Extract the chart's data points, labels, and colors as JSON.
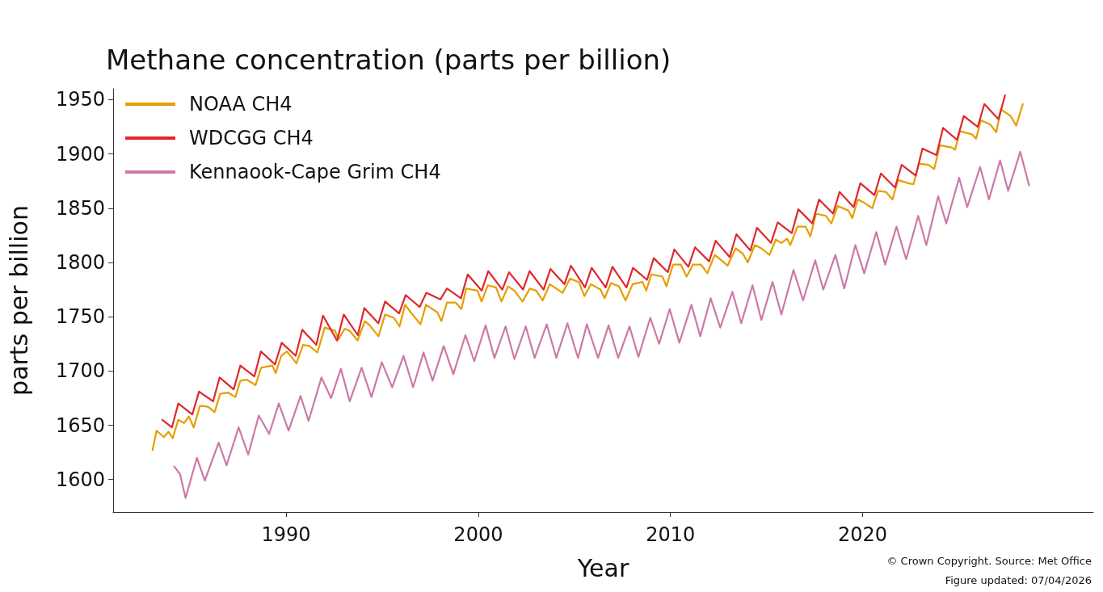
{
  "chart_data": {
    "type": "line",
    "title": "Methane concentration (parts per billion)",
    "xlabel": "Year",
    "ylabel": "parts per billion",
    "annotations": [
      "© Crown Copyright. Source: Met Office",
      "Figure updated: 07/04/2026"
    ],
    "xlim": [
      1981,
      2032
    ],
    "xticks": [
      1990,
      2000,
      2010,
      2020
    ],
    "ylim": [
      1570,
      1960
    ],
    "yticks": [
      1600,
      1650,
      1700,
      1750,
      1800,
      1850,
      1900,
      1950
    ],
    "grid": false,
    "legend": "top left",
    "marker": "none",
    "line_style": "solid",
    "series": [
      {
        "name": "NOAA CH4",
        "color": "#e69f00",
        "x": [
          1983.05,
          1983.26,
          1983.64,
          1983.89,
          1984.1,
          1984.39,
          1984.69,
          1984.94,
          1985.19,
          1985.52,
          1985.94,
          1986.28,
          1986.57,
          1986.99,
          1987.36,
          1987.62,
          1987.95,
          1988.41,
          1988.7,
          1989.29,
          1989.46,
          1989.75,
          1990.04,
          1990.54,
          1990.88,
          1991.21,
          1991.63,
          1992.01,
          1992.55,
          1992.72,
          1993.05,
          1993.31,
          1993.72,
          1994.1,
          1994.35,
          1994.81,
          1995.15,
          1995.61,
          1995.9,
          1996.19,
          1996.49,
          1996.99,
          1997.28,
          1997.87,
          1998.08,
          1998.37,
          1998.83,
          1999.12,
          1999.37,
          1999.96,
          2000.17,
          2000.5,
          2000.92,
          2001.21,
          2001.55,
          2001.88,
          2002.3,
          2002.68,
          2003.01,
          2003.35,
          2003.72,
          2004.14,
          2004.39,
          2004.77,
          2005.23,
          2005.52,
          2005.86,
          2006.36,
          2006.57,
          2006.9,
          2007.32,
          2007.66,
          2008.03,
          2008.54,
          2008.74,
          2009.0,
          2009.58,
          2009.79,
          2010.13,
          2010.54,
          2010.84,
          2011.17,
          2011.59,
          2011.92,
          2012.3,
          2012.72,
          2012.97,
          2013.39,
          2013.77,
          2014.02,
          2014.39,
          2014.73,
          2015.15,
          2015.48,
          2015.77,
          2016.07,
          2016.23,
          2016.61,
          2017.03,
          2017.28,
          2017.57,
          2018.08,
          2018.37,
          2018.7,
          2019.25,
          2019.46,
          2019.75,
          2020.08,
          2020.5,
          2020.8,
          2021.21,
          2021.55,
          2021.84,
          2022.38,
          2022.64,
          2022.93,
          2023.43,
          2023.72,
          2024.02,
          2024.64,
          2024.81,
          2025.06,
          2025.69,
          2025.9,
          2026.15,
          2026.65,
          2026.95,
          2027.2,
          2027.7,
          2027.99,
          2028.33
        ],
        "values": [
          1627,
          1645,
          1639,
          1644,
          1638,
          1655,
          1652,
          1658,
          1648,
          1668,
          1667,
          1662,
          1679,
          1680,
          1676,
          1691,
          1692,
          1687,
          1703,
          1705,
          1698,
          1714,
          1718,
          1707,
          1724,
          1723,
          1717,
          1740,
          1737,
          1729,
          1739,
          1737,
          1728,
          1746,
          1742,
          1732,
          1752,
          1749,
          1741,
          1761,
          1754,
          1743,
          1761,
          1754,
          1746,
          1763,
          1763,
          1757,
          1776,
          1774,
          1764,
          1779,
          1777,
          1764,
          1778,
          1774,
          1764,
          1776,
          1774,
          1765,
          1780,
          1775,
          1772,
          1785,
          1782,
          1769,
          1780,
          1775,
          1767,
          1781,
          1778,
          1765,
          1780,
          1782,
          1774,
          1789,
          1787,
          1778,
          1798,
          1798,
          1787,
          1798,
          1798,
          1790,
          1807,
          1801,
          1797,
          1813,
          1808,
          1800,
          1816,
          1813,
          1807,
          1821,
          1818,
          1822,
          1816,
          1833,
          1833,
          1824,
          1845,
          1843,
          1836,
          1852,
          1848,
          1841,
          1858,
          1855,
          1850,
          1866,
          1865,
          1858,
          1876,
          1873,
          1872,
          1891,
          1890,
          1886,
          1908,
          1906,
          1904,
          1921,
          1918,
          1914,
          1931,
          1927,
          1920,
          1941,
          1935,
          1926,
          1946
        ]
      },
      {
        "name": "WDCGG CH4",
        "color": "#e0282e",
        "x": [
          1983.56,
          1984.06,
          1984.39,
          1985.12,
          1985.47,
          1986.2,
          1986.54,
          1987.27,
          1987.62,
          1988.35,
          1988.69,
          1989.42,
          1989.77,
          1990.5,
          1990.84,
          1991.57,
          1991.92,
          1992.65,
          1993.0,
          1993.73,
          1994.07,
          1994.8,
          1995.15,
          1995.88,
          1996.22,
          1996.95,
          1997.3,
          1998.03,
          1998.37,
          1999.1,
          1999.45,
          2000.18,
          2000.52,
          2001.25,
          2001.6,
          2002.33,
          2002.67,
          2003.4,
          2003.75,
          2004.48,
          2004.82,
          2005.55,
          2005.9,
          2006.63,
          2006.98,
          2007.71,
          2008.05,
          2008.78,
          2009.13,
          2009.86,
          2010.2,
          2010.93,
          2011.28,
          2012.01,
          2012.35,
          2013.08,
          2013.43,
          2014.16,
          2014.5,
          2015.23,
          2015.58,
          2016.31,
          2016.65,
          2017.38,
          2017.73,
          2018.46,
          2018.8,
          2019.53,
          2019.88,
          2020.61,
          2020.95,
          2021.68,
          2022.03,
          2022.76,
          2023.11,
          2023.84,
          2024.18,
          2024.91,
          2025.26,
          2025.99,
          2026.33,
          2027.06,
          2027.41
        ],
        "values": [
          1655,
          1648,
          1670,
          1660,
          1681,
          1672,
          1694,
          1683,
          1705,
          1695,
          1718,
          1706,
          1726,
          1714,
          1738,
          1724,
          1751,
          1728,
          1752,
          1733,
          1758,
          1744,
          1764,
          1753,
          1770,
          1759,
          1772,
          1766,
          1776,
          1767,
          1789,
          1774,
          1792,
          1775,
          1791,
          1775,
          1792,
          1775,
          1794,
          1780,
          1797,
          1777,
          1795,
          1777,
          1796,
          1777,
          1795,
          1784,
          1804,
          1791,
          1812,
          1796,
          1814,
          1801,
          1820,
          1805,
          1826,
          1811,
          1832,
          1818,
          1837,
          1827,
          1849,
          1836,
          1858,
          1845,
          1865,
          1851,
          1873,
          1862,
          1882,
          1869,
          1890,
          1880,
          1905,
          1899,
          1924,
          1913,
          1935,
          1925,
          1946,
          1932,
          1954
        ]
      },
      {
        "name": "Kennaook-Cape Grim CH4",
        "color": "#cc79a7",
        "x": [
          1984.18,
          1984.48,
          1984.77,
          1985.36,
          1985.77,
          1986.49,
          1986.9,
          1987.53,
          1988.03,
          1988.58,
          1989.12,
          1989.62,
          1990.13,
          1990.75,
          1991.17,
          1991.84,
          1992.34,
          1992.85,
          1993.31,
          1993.93,
          1994.44,
          1994.98,
          1995.52,
          1996.11,
          1996.61,
          1997.15,
          1997.62,
          1998.2,
          1998.7,
          1999.33,
          1999.79,
          2000.38,
          2000.84,
          2001.42,
          2001.88,
          2002.47,
          2002.93,
          2003.56,
          2004.06,
          2004.64,
          2005.19,
          2005.65,
          2006.23,
          2006.78,
          2007.28,
          2007.87,
          2008.33,
          2008.95,
          2009.41,
          2009.96,
          2010.46,
          2011.09,
          2011.55,
          2012.09,
          2012.59,
          2013.22,
          2013.68,
          2014.27,
          2014.73,
          2015.31,
          2015.77,
          2016.4,
          2016.9,
          2017.53,
          2017.95,
          2018.58,
          2019.04,
          2019.62,
          2020.08,
          2020.71,
          2021.17,
          2021.76,
          2022.26,
          2022.89,
          2023.31,
          2023.93,
          2024.35,
          2025.02,
          2025.44,
          2026.11,
          2026.57,
          2027.15,
          2027.57,
          2028.2,
          2028.66
        ],
        "values": [
          1612,
          1605,
          1583,
          1620,
          1599,
          1634,
          1613,
          1648,
          1623,
          1659,
          1642,
          1670,
          1645,
          1677,
          1654,
          1694,
          1675,
          1702,
          1672,
          1703,
          1676,
          1708,
          1685,
          1714,
          1685,
          1717,
          1691,
          1723,
          1697,
          1733,
          1709,
          1742,
          1712,
          1741,
          1711,
          1741,
          1712,
          1743,
          1712,
          1744,
          1712,
          1743,
          1712,
          1742,
          1712,
          1741,
          1713,
          1749,
          1725,
          1757,
          1726,
          1761,
          1732,
          1767,
          1740,
          1773,
          1744,
          1779,
          1747,
          1782,
          1752,
          1793,
          1765,
          1802,
          1775,
          1807,
          1776,
          1816,
          1790,
          1828,
          1798,
          1833,
          1803,
          1843,
          1816,
          1861,
          1836,
          1878,
          1851,
          1888,
          1858,
          1894,
          1866,
          1902,
          1871
        ]
      }
    ]
  }
}
